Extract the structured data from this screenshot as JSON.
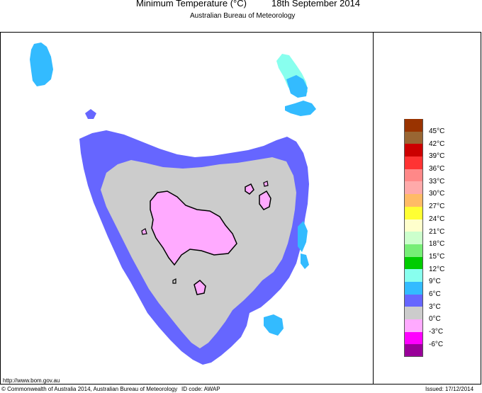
{
  "header": {
    "title": "Minimum Temperature (°C)",
    "date": "18th September 2014",
    "subtitle": "Australian Bureau of Meteorology"
  },
  "legend": {
    "items": [
      {
        "label": "45°C",
        "color": "#993300"
      },
      {
        "label": "42°C",
        "color": "#996633"
      },
      {
        "label": "39°C",
        "color": "#cc0000"
      },
      {
        "label": "36°C",
        "color": "#ff3333"
      },
      {
        "label": "33°C",
        "color": "#ff8888"
      },
      {
        "label": "30°C",
        "color": "#ffaaaa"
      },
      {
        "label": "27°C",
        "color": "#ffbb66"
      },
      {
        "label": "24°C",
        "color": "#ffff33"
      },
      {
        "label": "21°C",
        "color": "#ffffcc"
      },
      {
        "label": "18°C",
        "color": "#ccffcc"
      },
      {
        "label": "15°C",
        "color": "#77ee77"
      },
      {
        "label": "12°C",
        "color": "#00cc00"
      },
      {
        "label": "9°C",
        "color": "#88ffee"
      },
      {
        "label": "6°C",
        "color": "#33bbff"
      },
      {
        "label": "3°C",
        "color": "#6666ff"
      },
      {
        "label": "0°C",
        "color": "#cccccc"
      },
      {
        "label": "-3°C",
        "color": "#ffaaff"
      },
      {
        "label": "-6°C",
        "color": "#ff00ff"
      },
      {
        "label": "",
        "color": "#990099"
      }
    ]
  },
  "footer": {
    "url": "http://www.bom.gov.au",
    "copyright": "© Commonwealth of Australia 2014, Australian Bureau of Meteorology",
    "id_code": "ID code: AWAP",
    "issued": "Issued: 17/12/2014"
  }
}
